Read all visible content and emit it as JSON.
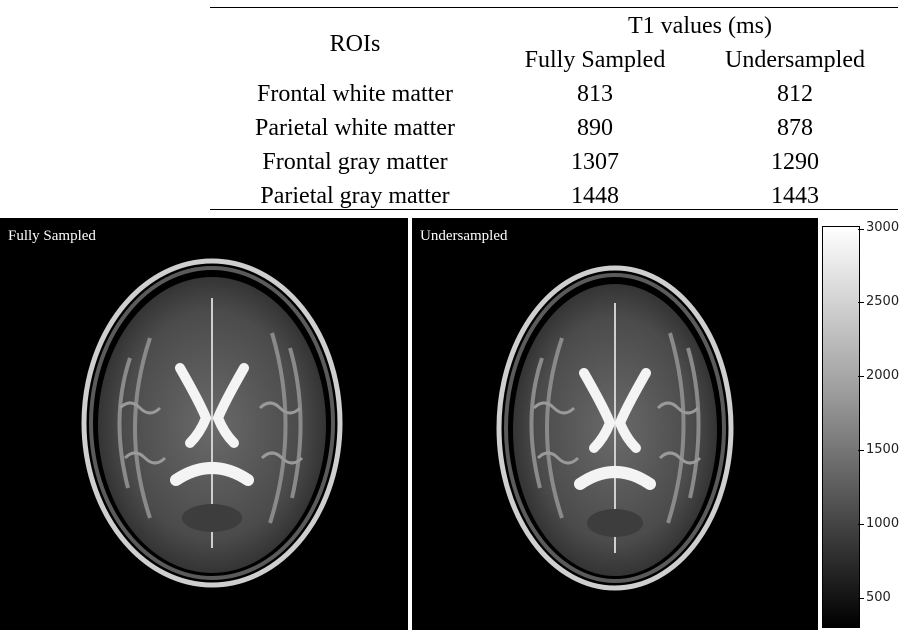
{
  "table": {
    "roi_header": "ROIs",
    "group_header": "T1 values (ms)",
    "col_fully": "Fully Sampled",
    "col_under": "Undersampled",
    "rows": [
      {
        "roi": "Frontal white matter",
        "fully": "813",
        "under": "812"
      },
      {
        "roi": "Parietal white matter",
        "fully": "890",
        "under": "878"
      },
      {
        "roi": "Frontal gray matter",
        "fully": "1307",
        "under": "1290"
      },
      {
        "roi": "Parietal gray matter",
        "fully": "1448",
        "under": "1443"
      }
    ]
  },
  "panels": {
    "left_label": "Fully Sampled",
    "right_label": "Undersampled"
  },
  "colorbar": {
    "ticks": [
      "3000",
      "2500",
      "2000",
      "1500",
      "1000",
      "500"
    ],
    "gradient": [
      "#ffffff",
      "#a0a0a0",
      "#4a4a4a",
      "#000000"
    ]
  }
}
